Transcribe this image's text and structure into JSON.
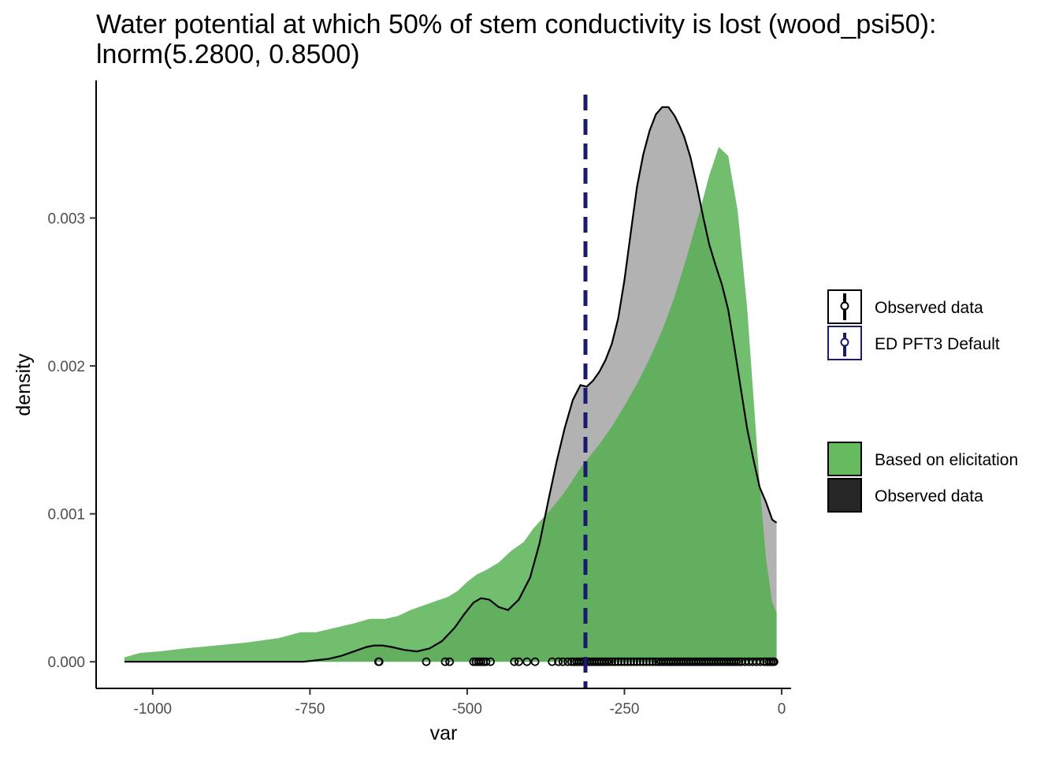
{
  "chart_data": {
    "type": "area",
    "title": "Water potential at which 50% of stem conductivity is lost (wood_psi50):",
    "subtitle": "lnorm(5.2800, 0.8500)",
    "xlabel": "var",
    "ylabel": "density",
    "xlim": [
      -1090,
      15
    ],
    "ylim": [
      -0.00018,
      0.00393
    ],
    "x_ticks": [
      -1000,
      -750,
      -500,
      -250,
      0
    ],
    "x_tick_labels": [
      "-1000",
      "-750",
      "-500",
      "-250",
      "0"
    ],
    "y_ticks": [
      0.0,
      0.001,
      0.002,
      0.003
    ],
    "y_tick_labels": [
      "0.000",
      "0.001",
      "0.002",
      "0.003"
    ],
    "grid": false,
    "legend_position": "right",
    "default_value": -312,
    "series": [
      {
        "name": "Based on elicitation",
        "kind": "density-fill",
        "color": "#4daf4a",
        "x": [
          -1045,
          -1020,
          -990,
          -950,
          -900,
          -850,
          -800,
          -765,
          -740,
          -710,
          -680,
          -655,
          -630,
          -610,
          -590,
          -570,
          -550,
          -530,
          -515,
          -500,
          -485,
          -470,
          -450,
          -430,
          -410,
          -395,
          -380,
          -365,
          -350,
          -335,
          -320,
          -305,
          -290,
          -270,
          -250,
          -230,
          -210,
          -190,
          -170,
          -150,
          -130,
          -115,
          -100,
          -85,
          -70,
          -55,
          -45,
          -35,
          -25,
          -15,
          -8
        ],
        "y": [
          3e-05,
          6e-05,
          7e-05,
          9e-05,
          0.00011,
          0.00013,
          0.00016,
          0.0002,
          0.0002,
          0.00023,
          0.00026,
          0.00029,
          0.00029,
          0.00031,
          0.00035,
          0.00038,
          0.00041,
          0.00044,
          0.00048,
          0.00054,
          0.00059,
          0.00062,
          0.00067,
          0.00075,
          0.00081,
          0.0009,
          0.00097,
          0.00104,
          0.00112,
          0.00121,
          0.00131,
          0.00139,
          0.00147,
          0.00159,
          0.00173,
          0.00188,
          0.00205,
          0.00224,
          0.00247,
          0.00275,
          0.00305,
          0.00329,
          0.00348,
          0.00342,
          0.00305,
          0.0024,
          0.0018,
          0.0012,
          0.0007,
          0.0004,
          0.00033
        ]
      },
      {
        "name": "Observed data",
        "kind": "density-fill-line",
        "color": "#000000",
        "x": [
          -1045,
          -900,
          -760,
          -720,
          -700,
          -680,
          -660,
          -648,
          -635,
          -620,
          -600,
          -580,
          -560,
          -540,
          -520,
          -505,
          -490,
          -478,
          -465,
          -450,
          -435,
          -418,
          -400,
          -385,
          -370,
          -358,
          -345,
          -332,
          -320,
          -310,
          -300,
          -290,
          -280,
          -270,
          -260,
          -250,
          -240,
          -230,
          -220,
          -210,
          -200,
          -190,
          -180,
          -170,
          -162,
          -155,
          -145,
          -135,
          -125,
          -115,
          -105,
          -95,
          -85,
          -75,
          -65,
          -55,
          -45,
          -35,
          -25,
          -15,
          -8
        ],
        "y": [
          0.0,
          0.0,
          0.0,
          2e-05,
          4e-05,
          7e-05,
          0.0001,
          0.00011,
          0.00011,
          0.0001,
          8e-05,
          7e-05,
          9e-05,
          0.00014,
          0.00023,
          0.00032,
          0.0004,
          0.00043,
          0.00042,
          0.00037,
          0.00035,
          0.00042,
          0.00057,
          0.0008,
          0.00111,
          0.00135,
          0.00158,
          0.00177,
          0.00187,
          0.00186,
          0.0019,
          0.00196,
          0.00204,
          0.00215,
          0.00232,
          0.00258,
          0.0029,
          0.00321,
          0.00343,
          0.00359,
          0.0037,
          0.00375,
          0.00375,
          0.00369,
          0.00362,
          0.00355,
          0.00341,
          0.00322,
          0.00301,
          0.00282,
          0.00268,
          0.00255,
          0.00238,
          0.00212,
          0.00185,
          0.00158,
          0.00137,
          0.00118,
          0.00108,
          0.00096,
          0.00094
        ]
      }
    ],
    "observed_points": [
      -640,
      -641,
      -565,
      -535,
      -528,
      -490,
      -486,
      -482,
      -478,
      -474,
      -470,
      -463,
      -425,
      -418,
      -405,
      -392,
      -365,
      -355,
      -348,
      -340,
      -334,
      -330,
      -326,
      -322,
      -318,
      -314,
      -310,
      -306,
      -302,
      -298,
      -294,
      -290,
      -286,
      -282,
      -278,
      -274,
      -270,
      -265,
      -260,
      -255,
      -250,
      -245,
      -240,
      -235,
      -230,
      -225,
      -220,
      -215,
      -210,
      -205,
      -200,
      -196,
      -192,
      -188,
      -184,
      -180,
      -176,
      -172,
      -168,
      -164,
      -160,
      -156,
      -152,
      -148,
      -144,
      -140,
      -136,
      -132,
      -128,
      -124,
      -120,
      -116,
      -112,
      -108,
      -104,
      -100,
      -96,
      -92,
      -88,
      -84,
      -80,
      -76,
      -72,
      -68,
      -64,
      -58,
      -52,
      -46,
      -40,
      -34,
      -28,
      -24,
      -20,
      -17,
      -14,
      -12
    ],
    "legend": {
      "lines": [
        {
          "label": "Observed data",
          "color": "#000000"
        },
        {
          "label": "ED PFT3 Default",
          "color": "#1a1a6e"
        }
      ],
      "fills": [
        {
          "label": "Based on elicitation",
          "color": "#66bb5e"
        },
        {
          "label": "Observed data",
          "color": "#262626"
        }
      ]
    }
  }
}
